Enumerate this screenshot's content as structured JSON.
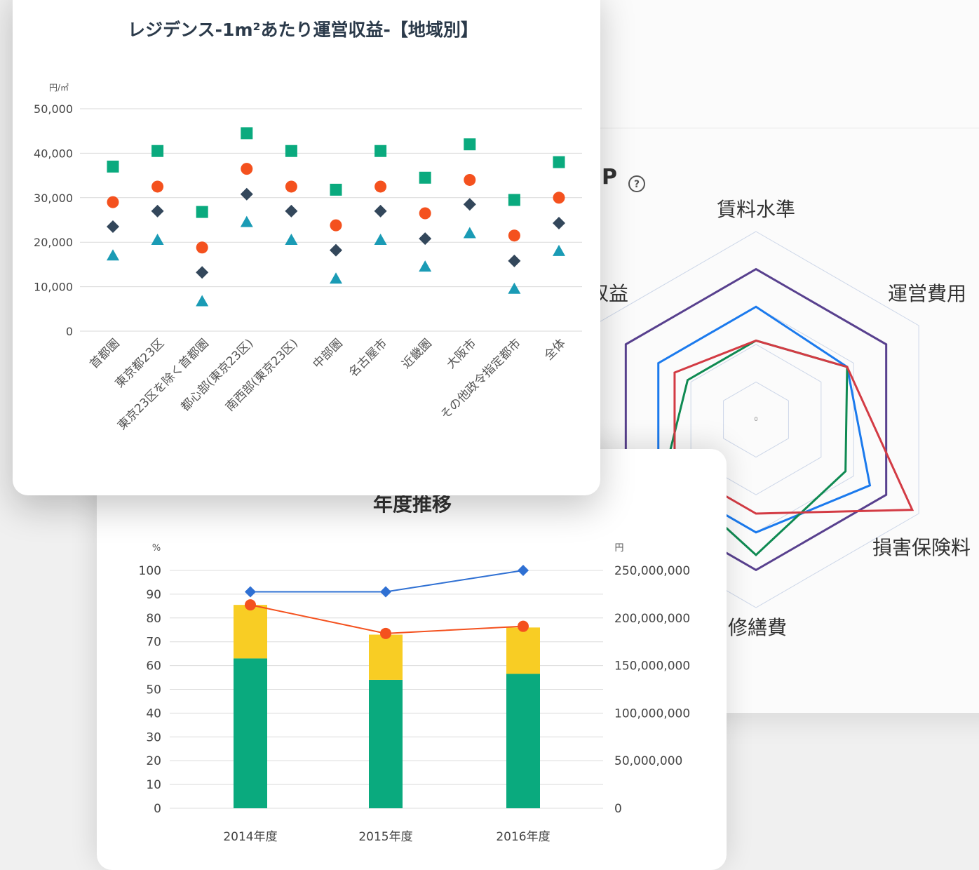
{
  "radar": {
    "title_fragment": "P",
    "help_icon": "question-circle-icon",
    "axes": [
      "賃料水準",
      "運営費用",
      "損害保険料",
      "修繕費",
      "",
      "収益"
    ],
    "center_mark": "0",
    "colors": [
      "#58408e",
      "#1b7aed",
      "#0f8a52",
      "#d33b44"
    ],
    "chart_data": {
      "type": "radar",
      "axes": [
        "賃料水準",
        "運営費用",
        "損害保険料",
        "修繕費",
        "",
        "収益"
      ],
      "series": [
        {
          "values": [
            0.8,
            0.8,
            0.8,
            0.8,
            0.8,
            0.8
          ]
        },
        {
          "values": [
            0.6,
            0.56,
            0.7,
            0.6,
            0.6,
            0.6
          ]
        },
        {
          "values": [
            0.42,
            0.56,
            0.55,
            0.72,
            0.56,
            0.42
          ]
        },
        {
          "values": [
            0.42,
            0.56,
            0.96,
            0.5,
            0.5,
            0.5
          ]
        }
      ]
    }
  },
  "scatter": {
    "title": "レジデンス-1m²あたり運営収益-【地域別】",
    "unit": "円/㎡",
    "colors": {
      "square": "#0aaa7e",
      "circle": "#f4511e",
      "diamond": "#33475b",
      "triangle": "#1a9bb5"
    },
    "chart_data": {
      "type": "scatter",
      "categories": [
        "首都圏",
        "東京都23区",
        "東京23区を除く首都圏",
        "都心部(東京23区)",
        "南西部(東京23区)",
        "中部圏",
        "名古屋市",
        "近畿圏",
        "大阪市",
        "その他政令指定都市",
        "全体"
      ],
      "ylim": [
        0,
        50000
      ],
      "yticks": [
        "0",
        "10,000",
        "20,000",
        "30,000",
        "40,000",
        "50,000"
      ],
      "series": [
        {
          "marker": "square",
          "values": [
            37000,
            40500,
            26800,
            44500,
            40500,
            31800,
            40500,
            34500,
            42000,
            29500,
            38000
          ]
        },
        {
          "marker": "circle",
          "values": [
            29000,
            32500,
            18800,
            36500,
            32500,
            23800,
            32500,
            26500,
            34000,
            21500,
            30000
          ]
        },
        {
          "marker": "diamond",
          "values": [
            23500,
            27000,
            13200,
            30800,
            27000,
            18200,
            27000,
            20800,
            28500,
            15800,
            24300
          ]
        },
        {
          "marker": "triangle",
          "values": [
            17000,
            20500,
            6700,
            24500,
            20500,
            11800,
            20500,
            14500,
            22000,
            9500,
            18000
          ]
        }
      ]
    }
  },
  "bar": {
    "title": "年度推移",
    "left_unit": "%",
    "right_unit": "円",
    "colors": {
      "bottom": "#0aaa7e",
      "top": "#f8cd24",
      "line_blue": "#2f70d3",
      "line_orange": "#f4511e"
    },
    "chart_data": {
      "type": "bar",
      "categories": [
        "2014年度",
        "2015年度",
        "2016年度"
      ],
      "ylim": [
        0,
        100
      ],
      "y2lim": [
        0,
        250000000
      ],
      "yticks": [
        "0",
        "10",
        "20",
        "30",
        "40",
        "50",
        "60",
        "70",
        "80",
        "90",
        "100"
      ],
      "y2ticks": [
        "0",
        "50,000,000",
        "100,000,000",
        "150,000,000",
        "200,000,000",
        "250,000,000"
      ],
      "stacked": [
        {
          "values": [
            63,
            54,
            56.5
          ]
        },
        {
          "values": [
            22.5,
            19,
            19.5
          ]
        }
      ],
      "lines": [
        {
          "marker": "diamond",
          "values": [
            91,
            91,
            100
          ]
        },
        {
          "marker": "circle",
          "values": [
            85.5,
            73.5,
            76.5
          ]
        }
      ]
    }
  }
}
